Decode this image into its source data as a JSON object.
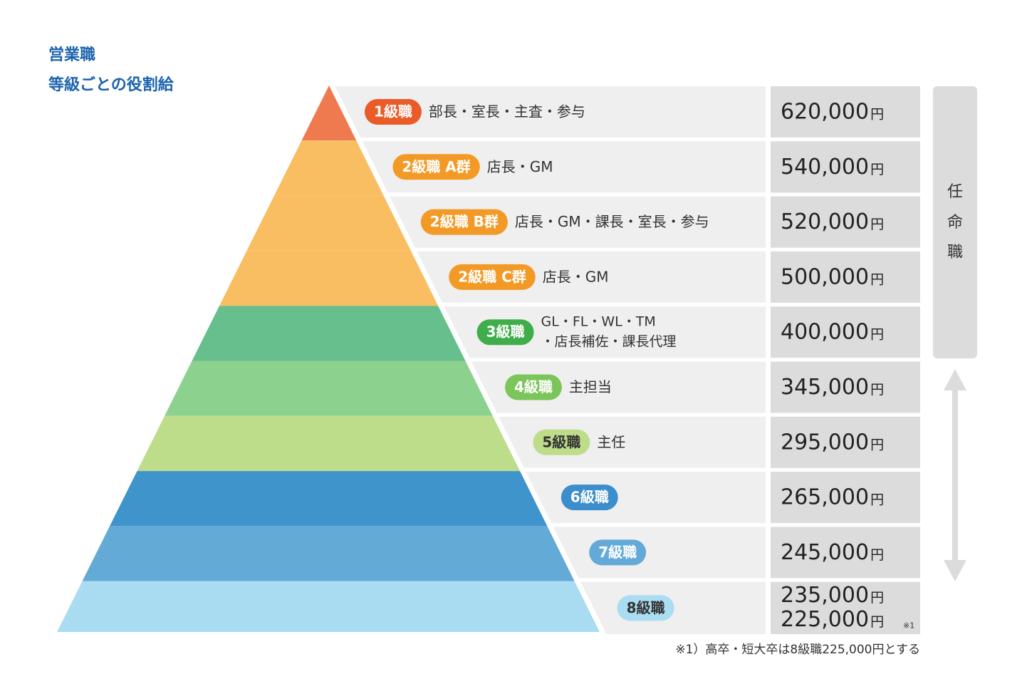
{
  "title": [
    "営業職",
    "等級ごとの役割給"
  ],
  "currency": "円",
  "rows": [
    {
      "grade": "1級職",
      "role": [
        "部長・室長・主査・参与"
      ],
      "salary": [
        {
          "amount": "620,000"
        }
      ]
    },
    {
      "grade": "2級職 A群",
      "role": [
        "店長・GM"
      ],
      "salary": [
        {
          "amount": "540,000"
        }
      ]
    },
    {
      "grade": "2級職 B群",
      "role": [
        "店長・GM・課長・室長・参与"
      ],
      "salary": [
        {
          "amount": "520,000"
        }
      ]
    },
    {
      "grade": "2級職 C群",
      "role": [
        "店長・GM"
      ],
      "salary": [
        {
          "amount": "500,000"
        }
      ]
    },
    {
      "grade": "3級職",
      "role": [
        "GL・FL・WL・TM",
        "・店長補佐・課長代理"
      ],
      "salary": [
        {
          "amount": "400,000"
        }
      ]
    },
    {
      "grade": "4級職",
      "role": [
        "主担当"
      ],
      "salary": [
        {
          "amount": "345,000"
        }
      ]
    },
    {
      "grade": "5級職",
      "role": [
        "主任"
      ],
      "salary": [
        {
          "amount": "295,000"
        }
      ]
    },
    {
      "grade": "6級職",
      "role": [],
      "salary": [
        {
          "amount": "265,000"
        }
      ]
    },
    {
      "grade": "7級職",
      "role": [],
      "salary": [
        {
          "amount": "245,000"
        }
      ]
    },
    {
      "grade": "8級職",
      "role": [],
      "salary": [
        {
          "amount": "235,000"
        },
        {
          "amount": "225,000",
          "note": "※1"
        }
      ]
    }
  ],
  "side_label": [
    "任",
    "命",
    "職"
  ],
  "footnote": "※1）高卒・短大卒は8級職225,000円とする"
}
